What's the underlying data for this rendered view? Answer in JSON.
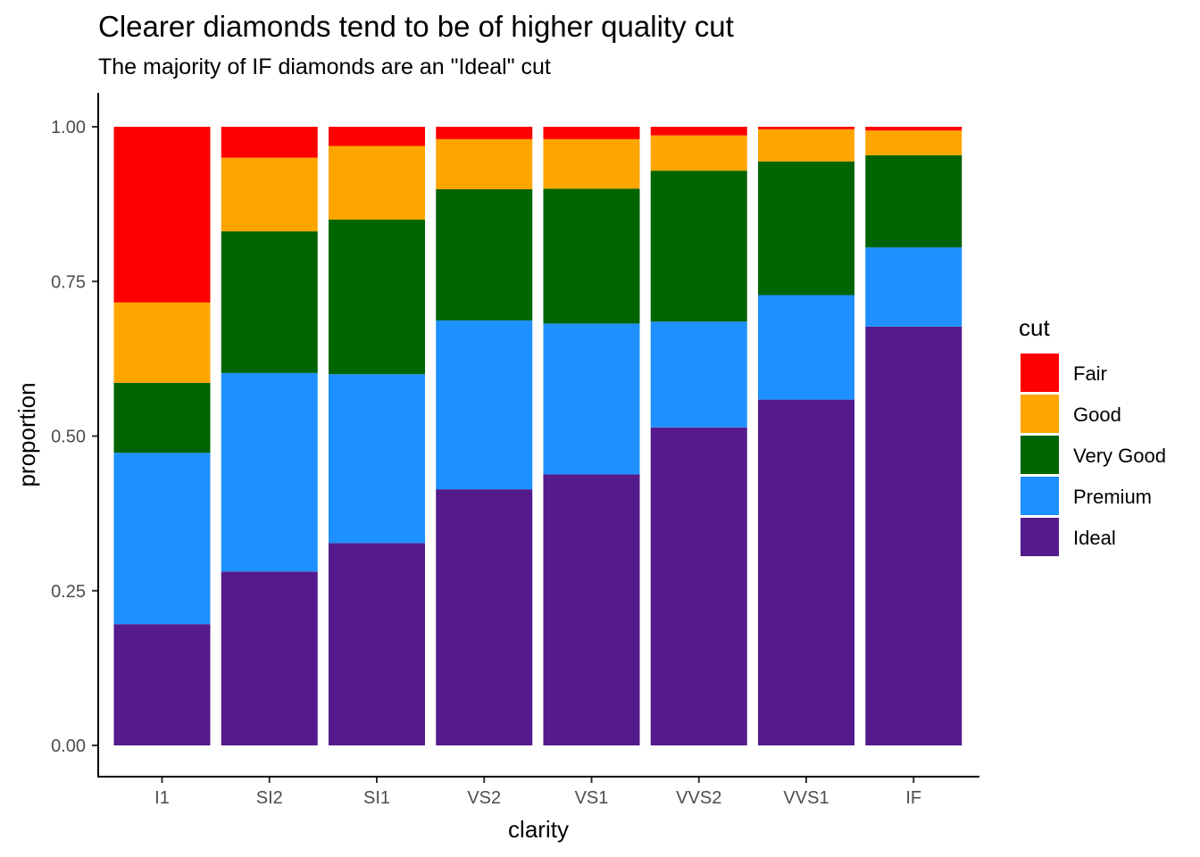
{
  "chart_data": {
    "type": "bar",
    "stacked": true,
    "title": "Clearer diamonds tend to be of higher quality cut",
    "subtitle": "The majority of IF diamonds are an \"Ideal\" cut",
    "xlabel": "clarity",
    "ylabel": "proportion",
    "ylim": [
      0,
      1
    ],
    "yticks": [
      "0.00",
      "0.25",
      "0.50",
      "0.75",
      "1.00"
    ],
    "ytick_values": [
      0,
      0.25,
      0.5,
      0.75,
      1.0
    ],
    "grid": false,
    "legend": {
      "title": "cut",
      "position": "right"
    },
    "categories": [
      "I1",
      "SI2",
      "SI1",
      "VS2",
      "VS1",
      "VVS2",
      "VVS1",
      "IF"
    ],
    "series": [
      {
        "name": "Ideal",
        "color": "#551A8B",
        "values": [
          0.196,
          0.281,
          0.327,
          0.414,
          0.438,
          0.514,
          0.559,
          0.677
        ]
      },
      {
        "name": "Premium",
        "color": "#1E90FF",
        "values": [
          0.277,
          0.321,
          0.273,
          0.273,
          0.244,
          0.171,
          0.169,
          0.128
        ]
      },
      {
        "name": "Very Good",
        "color": "#006400",
        "values": [
          0.113,
          0.229,
          0.25,
          0.212,
          0.218,
          0.244,
          0.216,
          0.149
        ]
      },
      {
        "name": "Good",
        "color": "#FFA500",
        "values": [
          0.13,
          0.119,
          0.119,
          0.081,
          0.08,
          0.057,
          0.052,
          0.04
        ]
      },
      {
        "name": "Fair",
        "color": "#FF0000",
        "values": [
          0.284,
          0.05,
          0.031,
          0.02,
          0.02,
          0.014,
          0.004,
          0.006
        ]
      }
    ],
    "legend_order": [
      "Fair",
      "Good",
      "Very Good",
      "Premium",
      "Ideal"
    ]
  }
}
